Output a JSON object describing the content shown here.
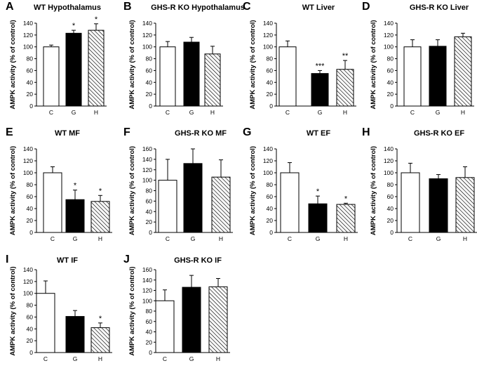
{
  "figure": {
    "colors": {
      "axis": "#000000",
      "white_fill": "#ffffff",
      "black_fill": "#000000",
      "hatch": "#000000"
    },
    "fill_legend": {
      "C": "white",
      "G": "black",
      "H": "hatched"
    }
  },
  "chart_data": [
    {
      "letter": "A",
      "title": "WT Hypothalamus",
      "type": "bar",
      "ylabel": "AMPK activity  (% of control)",
      "ylim": [
        0,
        140
      ],
      "yticks": [
        0,
        20,
        40,
        60,
        80,
        100,
        120,
        140
      ],
      "categories": [
        "C",
        "G",
        "H"
      ],
      "values": [
        100,
        123,
        128
      ],
      "errors": [
        3,
        5,
        11
      ],
      "significance": [
        "",
        "*",
        "*"
      ]
    },
    {
      "letter": "B",
      "title": "GHS-R KO Hypothalamus",
      "type": "bar",
      "ylabel": "AMPK activity  (% of control)",
      "ylim": [
        0,
        140
      ],
      "yticks": [
        0,
        20,
        40,
        60,
        80,
        100,
        120,
        140
      ],
      "categories": [
        "C",
        "G",
        "H"
      ],
      "values": [
        100,
        108,
        88
      ],
      "errors": [
        9,
        8,
        13
      ],
      "significance": [
        "",
        "",
        ""
      ]
    },
    {
      "letter": "C",
      "title": "WT Liver",
      "type": "bar",
      "ylabel": "AMPK activity  (% of control)",
      "ylim": [
        0,
        140
      ],
      "yticks": [
        0,
        20,
        40,
        60,
        80,
        100,
        120,
        140
      ],
      "categories": [
        "C",
        "G",
        "H"
      ],
      "values": [
        100,
        55,
        62
      ],
      "errors": [
        10,
        5,
        15
      ],
      "significance": [
        "",
        "***",
        "**"
      ]
    },
    {
      "letter": "D",
      "title": "GHS-R KO Liver",
      "type": "bar",
      "ylabel": "AMPK activity  (% of control)",
      "ylim": [
        0,
        140
      ],
      "yticks": [
        0,
        20,
        40,
        60,
        80,
        100,
        120,
        140
      ],
      "categories": [
        "C",
        "G",
        "H"
      ],
      "values": [
        100,
        101,
        117
      ],
      "errors": [
        12,
        11,
        6
      ],
      "significance": [
        "",
        "",
        ""
      ]
    },
    {
      "letter": "E",
      "title": "WT MF",
      "type": "bar",
      "ylabel": "AMPK activity  (% of control)",
      "ylim": [
        0,
        140
      ],
      "yticks": [
        0,
        20,
        40,
        60,
        80,
        100,
        120,
        140
      ],
      "categories": [
        "C",
        "G",
        "H"
      ],
      "values": [
        100,
        55,
        52
      ],
      "errors": [
        10,
        16,
        10
      ],
      "significance": [
        "",
        "*",
        "*"
      ]
    },
    {
      "letter": "F",
      "title": "GHS-R KO MF",
      "type": "bar",
      "ylabel": "AMPK activity  (% of control)",
      "ylim": [
        0,
        160
      ],
      "yticks": [
        0,
        20,
        40,
        60,
        80,
        100,
        120,
        140,
        160
      ],
      "categories": [
        "C",
        "G",
        "H"
      ],
      "values": [
        100,
        132,
        106
      ],
      "errors": [
        40,
        28,
        33
      ],
      "significance": [
        "",
        "",
        ""
      ]
    },
    {
      "letter": "G",
      "title": "WT EF",
      "type": "bar",
      "ylabel": "AMPK activity  (% of control)",
      "ylim": [
        0,
        140
      ],
      "yticks": [
        0,
        20,
        40,
        60,
        80,
        100,
        120,
        140
      ],
      "categories": [
        "C",
        "G",
        "H"
      ],
      "values": [
        100,
        48,
        47
      ],
      "errors": [
        17,
        13,
        2
      ],
      "significance": [
        "",
        "*",
        "*"
      ]
    },
    {
      "letter": "H",
      "title": "GHS-R KO EF",
      "type": "bar",
      "ylabel": "AMPK activity  (% of control)",
      "ylim": [
        0,
        140
      ],
      "yticks": [
        0,
        20,
        40,
        60,
        80,
        100,
        120,
        140
      ],
      "categories": [
        "C",
        "G",
        "H"
      ],
      "values": [
        100,
        90,
        92
      ],
      "errors": [
        16,
        7,
        18
      ],
      "significance": [
        "",
        "",
        ""
      ]
    },
    {
      "letter": "I",
      "title": "WT IF",
      "type": "bar",
      "ylabel": "AMPK activity  (% of control)",
      "ylim": [
        0,
        140
      ],
      "yticks": [
        0,
        20,
        40,
        60,
        80,
        100,
        120,
        140
      ],
      "categories": [
        "C",
        "G",
        "H"
      ],
      "values": [
        100,
        61,
        42
      ],
      "errors": [
        21,
        10,
        8
      ],
      "significance": [
        "",
        "",
        "*"
      ]
    },
    {
      "letter": "J",
      "title": "GHS-R KO IF",
      "type": "bar",
      "ylabel": "AMPK activity  (% of control)",
      "ylim": [
        0,
        160
      ],
      "yticks": [
        0,
        20,
        40,
        60,
        80,
        100,
        120,
        140,
        160
      ],
      "categories": [
        "C",
        "G",
        "H"
      ],
      "values": [
        100,
        126,
        127
      ],
      "errors": [
        21,
        23,
        16
      ],
      "significance": [
        "",
        "",
        ""
      ]
    }
  ]
}
